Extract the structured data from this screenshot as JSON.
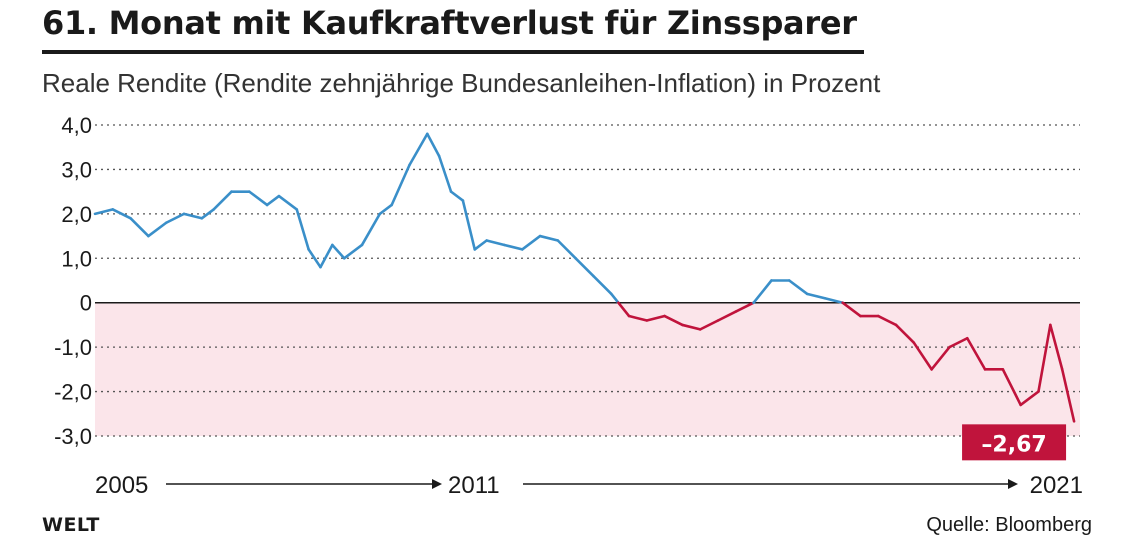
{
  "title": "61. Monat mit Kaufkraftverlust für Zinssparer",
  "subtitle": "Reale Rendite (Rendite zehnjährige Bundesanleihen-Inflation) in Prozent",
  "brand": "WELT",
  "source": "Quelle: Bloomberg",
  "colors": {
    "positive": "#3a8fc9",
    "negative": "#c0143c",
    "negative_band": "#fbe5ea",
    "grid": "#555555"
  },
  "chart_data": {
    "type": "line",
    "xlim": [
      2005,
      2021.6
    ],
    "ylim": [
      -3.0,
      4.0
    ],
    "y_ticks": [
      {
        "value": 4.0,
        "label": "4,0"
      },
      {
        "value": 3.0,
        "label": "3,0"
      },
      {
        "value": 2.0,
        "label": "2,0"
      },
      {
        "value": 1.0,
        "label": "1,0"
      },
      {
        "value": 0,
        "label": "0"
      },
      {
        "value": -1.0,
        "label": "-1,0"
      },
      {
        "value": -2.0,
        "label": "-2,0"
      },
      {
        "value": -3.0,
        "label": "-3,0"
      }
    ],
    "x_labels": [
      "2005",
      "2011",
      "2021"
    ],
    "annotation": {
      "label": "–2,67",
      "x": 2021.5,
      "y": -2.67
    },
    "x": [
      2005.0,
      2005.3,
      2005.6,
      2005.9,
      2006.2,
      2006.5,
      2006.8,
      2007.0,
      2007.3,
      2007.6,
      2007.9,
      2008.1,
      2008.4,
      2008.6,
      2008.8,
      2009.0,
      2009.2,
      2009.5,
      2009.8,
      2010.0,
      2010.3,
      2010.6,
      2010.8,
      2011.0,
      2011.2,
      2011.4,
      2011.6,
      2011.9,
      2012.2,
      2012.5,
      2012.8,
      2013.1,
      2013.4,
      2013.7,
      2014.0,
      2014.3,
      2014.6,
      2014.9,
      2015.2,
      2015.5,
      2015.8,
      2016.1,
      2016.4,
      2016.7,
      2017.0,
      2017.3,
      2017.6,
      2017.9,
      2018.2,
      2018.5,
      2018.8,
      2019.1,
      2019.4,
      2019.7,
      2020.0,
      2020.3,
      2020.6,
      2020.9,
      2021.1,
      2021.3,
      2021.5
    ],
    "y": [
      2.0,
      2.1,
      1.9,
      1.5,
      1.8,
      2.0,
      1.9,
      2.1,
      2.5,
      2.5,
      2.2,
      2.4,
      2.1,
      1.2,
      0.8,
      1.3,
      1.0,
      1.3,
      2.0,
      2.2,
      3.1,
      3.8,
      3.3,
      2.5,
      2.3,
      1.2,
      1.4,
      1.3,
      1.2,
      1.5,
      1.4,
      1.0,
      0.6,
      0.2,
      -0.3,
      -0.4,
      -0.3,
      -0.5,
      -0.6,
      -0.4,
      -0.2,
      0.0,
      0.5,
      0.5,
      0.2,
      0.1,
      0.0,
      -0.3,
      -0.3,
      -0.5,
      -0.9,
      -1.5,
      -1.0,
      -0.8,
      -1.5,
      -1.5,
      -2.3,
      -2.0,
      -0.5,
      -1.5,
      -2.67
    ]
  }
}
